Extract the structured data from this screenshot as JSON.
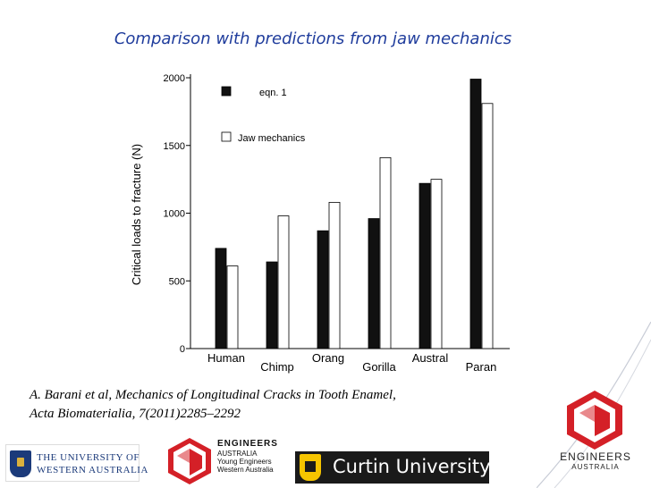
{
  "slide": {
    "title": "Comparison with predictions from jaw mechanics",
    "citation_line1": "A.   Barani et al, Mechanics of Longitudinal Cracks in Tooth Enamel,",
    "citation_line2": "Acta Biomaterialia, 7(2011)2285–2292"
  },
  "logos": {
    "uwa_line1": "THE UNIVERSITY OF",
    "uwa_line2": "WESTERN AUSTRALIA",
    "ea_small_line1": "ENGINEERS",
    "ea_small_line2": "AUSTRALIA",
    "ea_small_line3": "Young Engineers",
    "ea_small_line4": "Western Australia",
    "curtin_name": "Curtin University",
    "ea_large_line1": "ENGINEERS",
    "ea_large_line2": "AUSTRALIA",
    "brand_red": "#d42027",
    "uwa_blue": "#1b3a7a",
    "curtin_gold": "#f5c400"
  },
  "chart_data": {
    "type": "bar",
    "title": "",
    "xlabel": "",
    "ylabel": "Critical loads to fracture (N)",
    "ylim": [
      0,
      2000
    ],
    "yticks": [
      "0",
      "500",
      "1000",
      "1500",
      "2000"
    ],
    "grid": false,
    "legend_placement": "top-left",
    "categories": [
      "Human",
      "Chimp",
      "Orang",
      "Gorilla",
      "Austral",
      "Paran"
    ],
    "series": [
      {
        "name": "eqn. 1",
        "color": "#111111",
        "values": [
          740,
          640,
          870,
          960,
          1220,
          1990
        ]
      },
      {
        "name": "Jaw mechanics",
        "color": "#ffffff",
        "values": [
          610,
          980,
          1080,
          1410,
          1250,
          1810
        ]
      }
    ]
  }
}
